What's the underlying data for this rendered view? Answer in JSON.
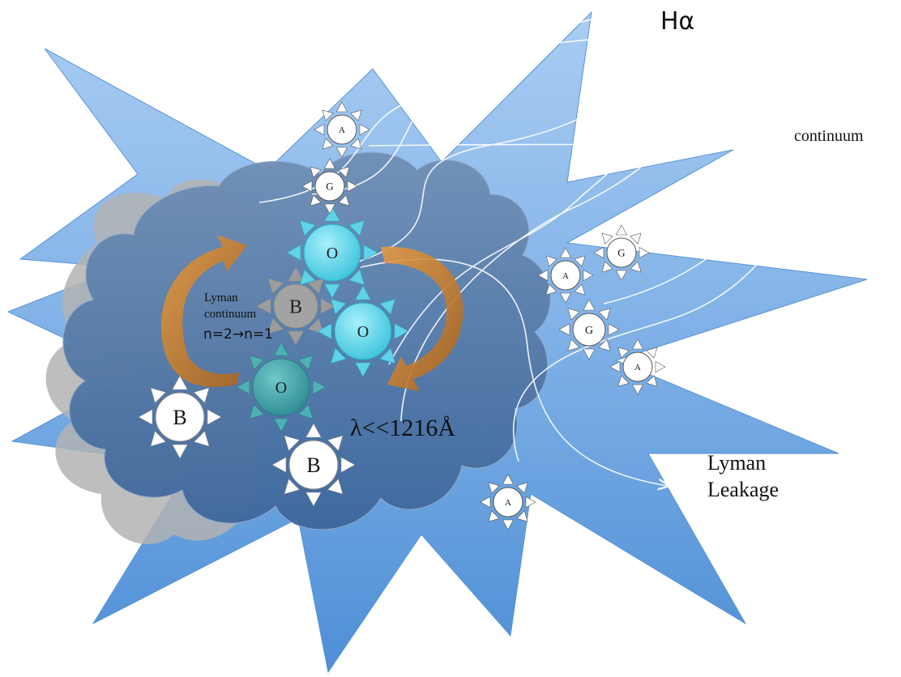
{
  "labels": {
    "halpha": "Hα",
    "continuum": "continuum",
    "lyman_continuum": "Lyman\ncontinuum",
    "transition": "n=2→n=1",
    "lambda": "λ<<1216Å",
    "lyman_leakage": "Lyman\nLeakage"
  },
  "stars": {
    "o_upper": "O",
    "o_middle": "O",
    "o_lower": "O",
    "b_gray": "B",
    "b_left": "B",
    "b_bottom": "B",
    "a_top": "A",
    "g_top": "G",
    "a_right": "A",
    "g_right_top": "G",
    "g_right_mid": "G",
    "a_right_low": "A",
    "a_bottom": "A"
  },
  "colors": {
    "star_burst_fill": "#7fb0e6",
    "cloud_fill": "#4a6f9c",
    "gray_cloud_fill": "#a8a8a8",
    "o_star_fill": "#5fd3e8",
    "o_star_dark_fill": "#3a9ea6",
    "arrow_orange": "#c47a2c"
  }
}
